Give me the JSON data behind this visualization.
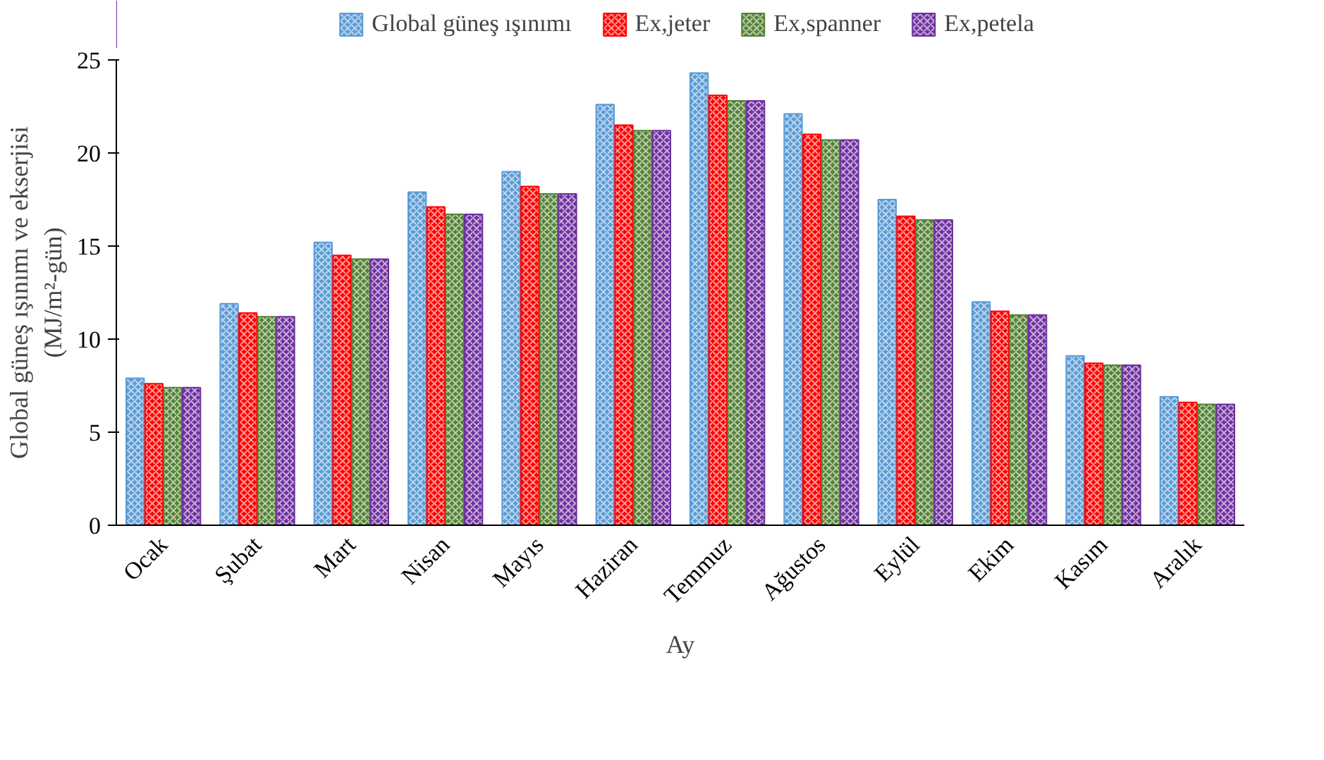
{
  "chart_data": {
    "type": "bar",
    "xlabel": "Ay",
    "ylabel": "Global güneş ışınımı ve ekserjisi\n(MJ/m²-gün)",
    "categories": [
      "Ocak",
      "Şubat",
      "Mart",
      "Nisan",
      "Mayıs",
      "Haziran",
      "Temmuz",
      "Ağustos",
      "Eylül",
      "Ekim",
      "Kasım",
      "Aralık"
    ],
    "series": [
      {
        "name": "Global güneş ışınımı",
        "color": "#5b9bd5",
        "values": [
          7.9,
          11.9,
          15.2,
          17.9,
          19.0,
          22.6,
          24.3,
          22.1,
          17.5,
          12.0,
          9.1,
          6.9
        ]
      },
      {
        "name": "Ex,jeter",
        "color": "#ff0000",
        "values": [
          7.6,
          11.4,
          14.5,
          17.1,
          18.2,
          21.5,
          23.1,
          21.0,
          16.6,
          11.5,
          8.7,
          6.6
        ]
      },
      {
        "name": "Ex,spanner",
        "color": "#548235",
        "values": [
          7.4,
          11.2,
          14.3,
          16.7,
          17.8,
          21.2,
          22.8,
          20.7,
          16.4,
          11.3,
          8.6,
          6.5
        ]
      },
      {
        "name": "Ex,petela",
        "color": "#7030a0",
        "values": [
          7.4,
          11.2,
          14.3,
          16.7,
          17.8,
          21.2,
          22.8,
          20.7,
          16.4,
          11.3,
          8.6,
          6.5
        ]
      }
    ],
    "ylim": [
      0,
      25
    ],
    "yticks": [
      0,
      5,
      10,
      15,
      20,
      25
    ],
    "grid": false,
    "legend": "top"
  }
}
